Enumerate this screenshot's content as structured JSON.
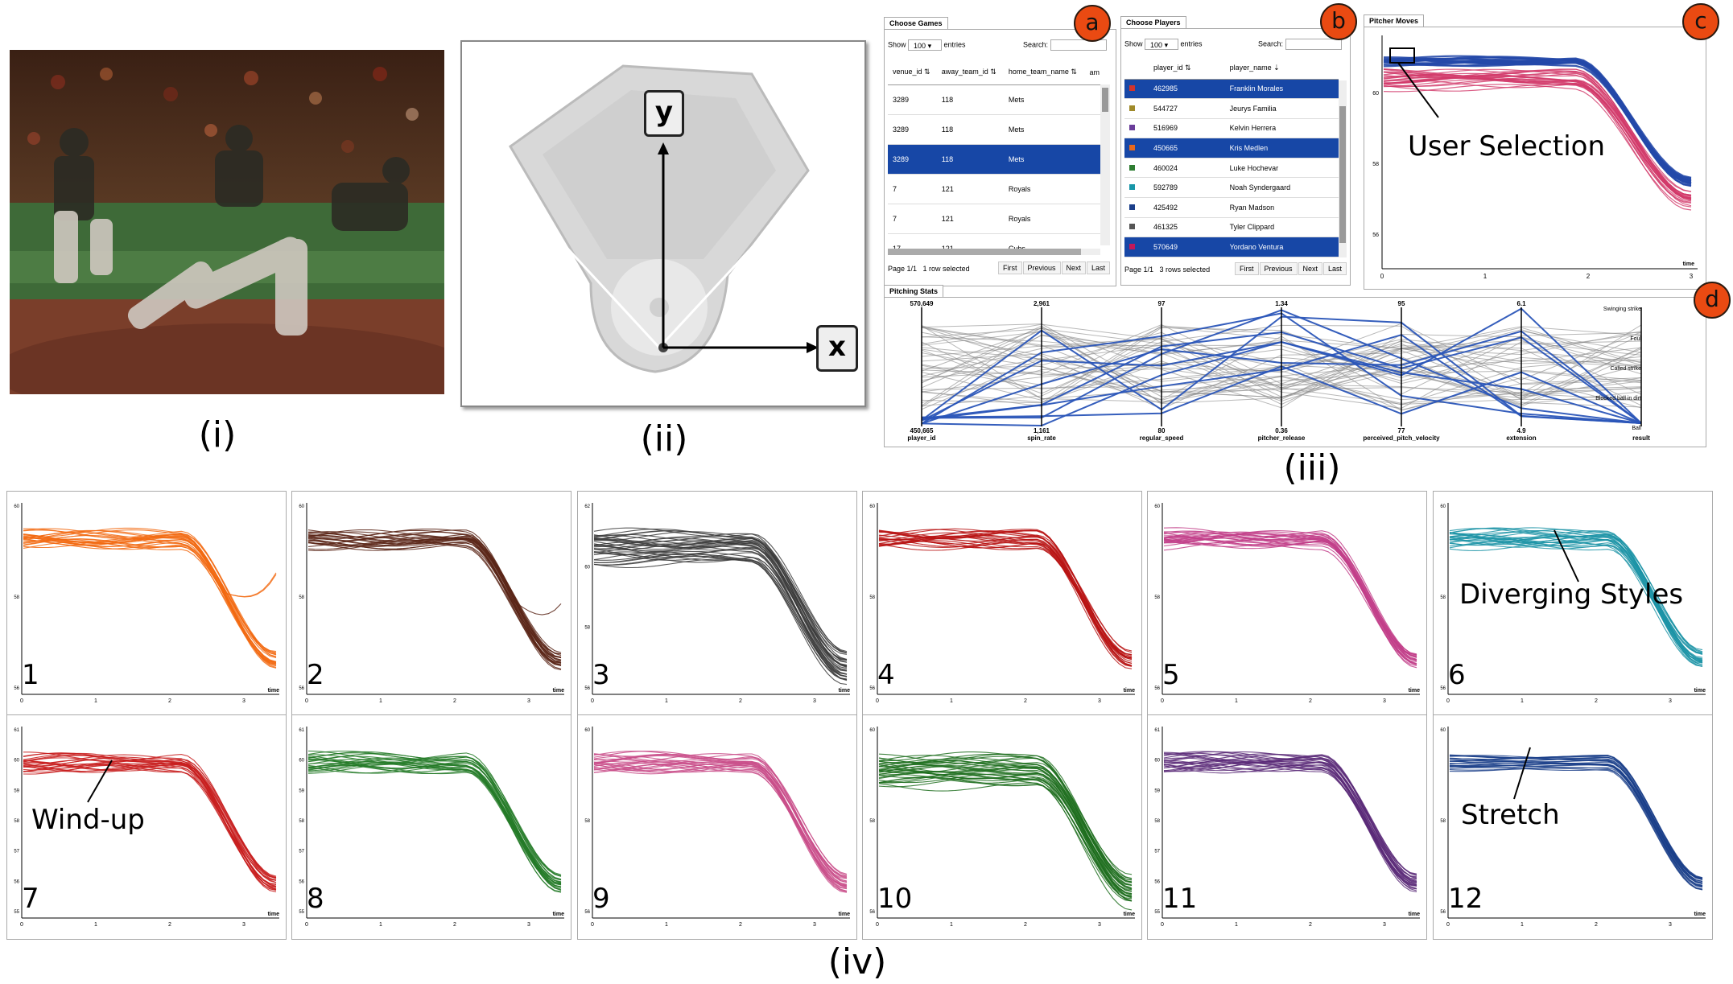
{
  "captions": {
    "i": "(i)",
    "ii": "(ii)",
    "iii": "(iii)",
    "iv": "(iv)"
  },
  "field": {
    "y_label": "y",
    "x_label": "x"
  },
  "games": {
    "tab": "Choose Games",
    "badge": "a",
    "show_label": "Show",
    "show_value": "100",
    "entries_label": "entries",
    "search_label": "Search:",
    "columns": [
      "venue_id",
      "away_team_id",
      "home_team_name",
      "am"
    ],
    "rows": [
      [
        "3289",
        "118",
        "Mets"
      ],
      [
        "3289",
        "118",
        "Mets"
      ],
      [
        "3289",
        "118",
        "Mets"
      ],
      [
        "7",
        "121",
        "Royals"
      ],
      [
        "7",
        "121",
        "Royals"
      ],
      [
        "17",
        "121",
        "Cubs"
      ]
    ],
    "selected_row": 2,
    "footer_page": "Page 1/1",
    "footer_sel": "1 row selected",
    "buttons": [
      "First",
      "Previous",
      "Next",
      "Last"
    ]
  },
  "players": {
    "tab": "Choose Players",
    "badge": "b",
    "show_label": "Show",
    "show_value": "100",
    "entries_label": "entries",
    "search_label": "Search:",
    "columns": [
      "player_id",
      "player_name"
    ],
    "rows": [
      {
        "id": "462985",
        "name": "Franklin Morales",
        "color": "#d0342c",
        "selected": true
      },
      {
        "id": "544727",
        "name": "Jeurys Familia",
        "color": "#a08a2a",
        "selected": false
      },
      {
        "id": "516969",
        "name": "Kelvin Herrera",
        "color": "#6a3d9a",
        "selected": false
      },
      {
        "id": "450665",
        "name": "Kris Medlen",
        "color": "#e8681c",
        "selected": true
      },
      {
        "id": "460024",
        "name": "Luke Hochevar",
        "color": "#2e7d32",
        "selected": false
      },
      {
        "id": "592789",
        "name": "Noah Syndergaard",
        "color": "#1796a8",
        "selected": false
      },
      {
        "id": "425492",
        "name": "Ryan Madson",
        "color": "#1b3f8a",
        "selected": false
      },
      {
        "id": "461325",
        "name": "Tyler Clippard",
        "color": "#555555",
        "selected": false
      },
      {
        "id": "570649",
        "name": "Yordano Ventura",
        "color": "#c2185b",
        "selected": true
      }
    ],
    "footer_page": "Page 1/1",
    "footer_sel": "3 rows selected",
    "buttons": [
      "First",
      "Previous",
      "Next",
      "Last"
    ]
  },
  "moves": {
    "tab": "Pitcher Moves",
    "badge": "c",
    "annotation": "User Selection",
    "x_ticks": [
      "0",
      "1",
      "2",
      "3"
    ],
    "x_label": "time",
    "y_ticks": [
      "60",
      "58",
      "56"
    ]
  },
  "stats": {
    "tab": "Pitching Stats",
    "badge": "d",
    "axes": [
      {
        "name": "player_id",
        "top": "570,649",
        "bottom": "450,665"
      },
      {
        "name": "spin_rate",
        "top": "2,961",
        "bottom": "1,161"
      },
      {
        "name": "regular_speed",
        "top": "97",
        "bottom": "80"
      },
      {
        "name": "pitcher_release",
        "top": "1.34",
        "bottom": "0.36"
      },
      {
        "name": "perceived_pitch_velocity",
        "top": "95",
        "bottom": "77"
      },
      {
        "name": "extension",
        "top": "6.1",
        "bottom": "4.9"
      },
      {
        "name": "result",
        "top": "",
        "bottom": ""
      }
    ],
    "result_categories": [
      "Swinging strike",
      "Foul",
      "Called strike",
      "Blocked ball in dirt",
      "Ball"
    ]
  },
  "small_multiples": [
    {
      "n": "1",
      "color": "#f26a12",
      "y_ticks": [
        "60",
        "58",
        "56"
      ],
      "annotation": ""
    },
    {
      "n": "2",
      "color": "#5a2618",
      "y_ticks": [
        "60",
        "58",
        "56"
      ],
      "annotation": ""
    },
    {
      "n": "3",
      "color": "#3c3c3c",
      "y_ticks": [
        "62",
        "60",
        "58",
        "56"
      ],
      "annotation": ""
    },
    {
      "n": "4",
      "color": "#b81414",
      "y_ticks": [
        "60",
        "58",
        "56"
      ],
      "annotation": ""
    },
    {
      "n": "5",
      "color": "#c2408a",
      "y_ticks": [
        "60",
        "58",
        "56"
      ],
      "annotation": ""
    },
    {
      "n": "6",
      "color": "#1b93a6",
      "y_ticks": [
        "60",
        "58",
        "56"
      ],
      "annotation": "Diverging Styles"
    },
    {
      "n": "7",
      "color": "#c81e1e",
      "y_ticks": [
        "61",
        "60",
        "59",
        "58",
        "57",
        "56",
        "55"
      ],
      "annotation": "Wind-up"
    },
    {
      "n": "8",
      "color": "#237a27",
      "y_ticks": [
        "61",
        "60",
        "59",
        "58",
        "57",
        "56",
        "55"
      ],
      "annotation": ""
    },
    {
      "n": "9",
      "color": "#c94d8a",
      "y_ticks": [
        "60",
        "58",
        "56"
      ],
      "annotation": ""
    },
    {
      "n": "10",
      "color": "#1e6e1e",
      "y_ticks": [
        "60",
        "58",
        "56"
      ],
      "annotation": ""
    },
    {
      "n": "11",
      "color": "#5b2a78",
      "y_ticks": [
        "61",
        "60",
        "59",
        "58",
        "57",
        "56",
        "55"
      ],
      "annotation": ""
    },
    {
      "n": "12",
      "color": "#1b3f8a",
      "y_ticks": [
        "60",
        "58",
        "56"
      ],
      "annotation": "Stretch"
    }
  ],
  "mini_x_ticks": [
    "0",
    "1",
    "2",
    "3"
  ],
  "mini_x_label": "time"
}
